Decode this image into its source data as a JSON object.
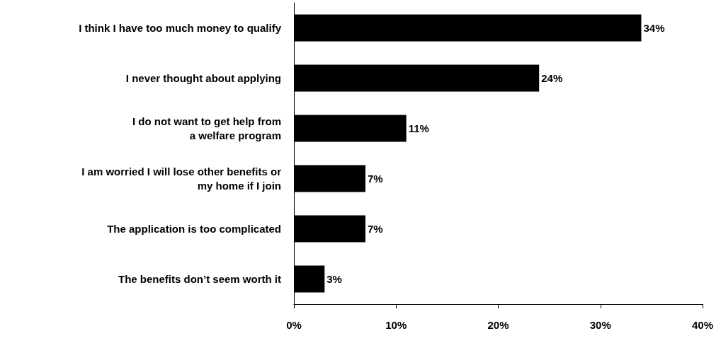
{
  "chart_data": {
    "type": "bar",
    "orientation": "horizontal",
    "categories": [
      "I think I have too much money to qualify",
      "I never thought about applying",
      "I do not want to get help from\na welfare program",
      "I am worried I will lose other benefits or\nmy home if I join",
      "The application is too complicated",
      "The benefits don’t seem worth it"
    ],
    "values": [
      34,
      24,
      11,
      7,
      7,
      3
    ],
    "value_labels": [
      "34%",
      "24%",
      "11%",
      "7%",
      "7%",
      "3%"
    ],
    "color": "#000000",
    "xlim": [
      0,
      40
    ],
    "xticks": [
      {
        "value": 0,
        "label": "0%"
      },
      {
        "value": 10,
        "label": "10%"
      },
      {
        "value": 20,
        "label": "20%"
      },
      {
        "value": 30,
        "label": "30%"
      },
      {
        "value": 40,
        "label": "40%"
      }
    ]
  }
}
